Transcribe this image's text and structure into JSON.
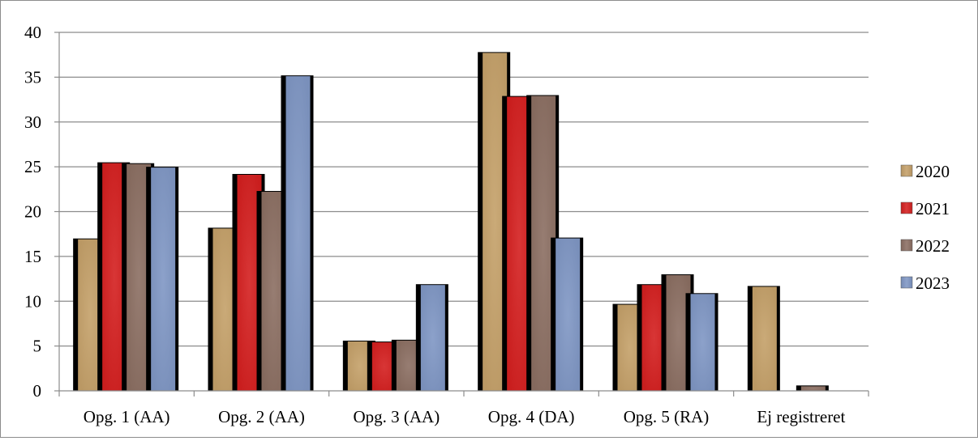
{
  "chart_data": {
    "type": "bar",
    "title": "",
    "xlabel": "",
    "ylabel": "",
    "ylim": [
      0,
      40
    ],
    "yticks": [
      0,
      5,
      10,
      15,
      20,
      25,
      30,
      35,
      40
    ],
    "grid": true,
    "legend_position": "right",
    "categories": [
      "Opg. 1 (AA)",
      "Opg. 2 (AA)",
      "Opg. 3 (AA)",
      "Opg. 4 (DA)",
      "Opg. 5 (RA)",
      "Ej registreret"
    ],
    "series": [
      {
        "name": "2020",
        "color": "#c4a069",
        "values": [
          17.0,
          18.2,
          5.6,
          37.8,
          9.7,
          11.7
        ]
      },
      {
        "name": "2021",
        "color": "#d42020",
        "values": [
          25.5,
          24.2,
          5.5,
          32.9,
          11.9,
          0.0
        ]
      },
      {
        "name": "2022",
        "color": "#8b6e62",
        "values": [
          25.4,
          22.3,
          5.7,
          33.0,
          13.0,
          0.6
        ]
      },
      {
        "name": "2023",
        "color": "#7f96c4",
        "values": [
          25.0,
          35.2,
          11.9,
          17.1,
          10.9,
          0.0
        ]
      }
    ]
  }
}
